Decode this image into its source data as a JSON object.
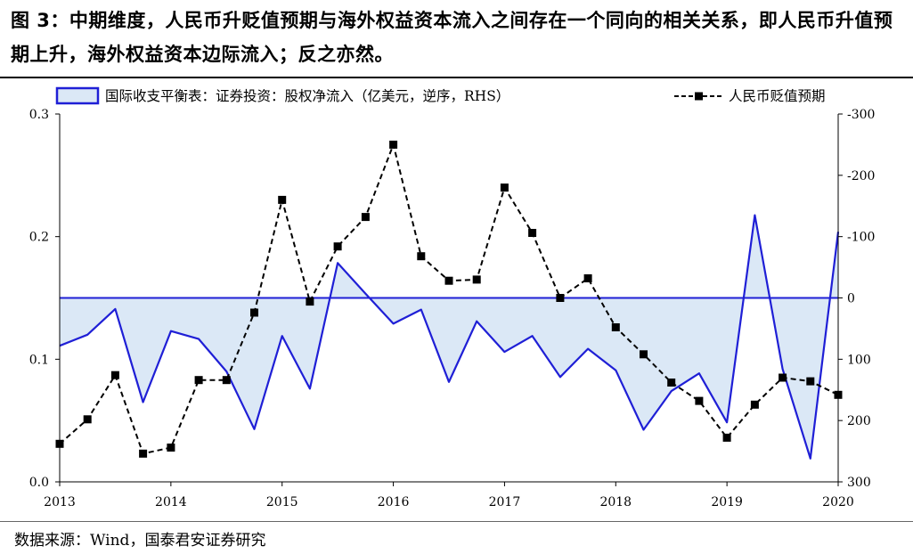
{
  "title": "图 3：中期维度，人民币升贬值预期与海外权益资本流入之间存在一个同向的相关关系，即人民币升值预期上升，海外权益资本边际流入；反之亦然。",
  "source": "数据来源：Wind，国泰君安证券研究",
  "colors": {
    "area_fill": "#dbe8f6",
    "area_line": "#1f1fd6",
    "dashed_line": "#000000"
  },
  "chart_data": {
    "type": "line",
    "legend_position": "top",
    "x_ticks": [
      "2013",
      "2014",
      "2015",
      "2016",
      "2017",
      "2018",
      "2019",
      "2020"
    ],
    "x_range": [
      2013,
      2020
    ],
    "left_axis": {
      "ylim": [
        0,
        0.3
      ],
      "ticks": [
        "0.0",
        "0.1",
        "0.2",
        "0.3"
      ]
    },
    "right_axis": {
      "ylim": [
        300,
        -300
      ],
      "reversed": true,
      "ticks": [
        "-300",
        "-200",
        "-100",
        "0",
        "100",
        "200",
        "300"
      ]
    },
    "series": [
      {
        "name": "国际收支平衡表：证券投资：股权净流入（亿美元，逆序，RHS）",
        "kind": "area",
        "axis": "right",
        "baseline": 0,
        "x": [
          2013.0,
          2013.25,
          2013.5,
          2013.75,
          2014.0,
          2014.25,
          2014.5,
          2014.75,
          2015.0,
          2015.25,
          2015.5,
          2015.75,
          2016.0,
          2016.25,
          2016.5,
          2016.75,
          2017.0,
          2017.25,
          2017.5,
          2017.75,
          2018.0,
          2018.25,
          2018.5,
          2018.75,
          2019.0,
          2019.25,
          2019.5,
          2019.75,
          2020.0
        ],
        "values": [
          78,
          60,
          18,
          170,
          54,
          67,
          120,
          214,
          62,
          148,
          -57,
          -7,
          42,
          19,
          137,
          38,
          88,
          62,
          129,
          83,
          118,
          215,
          152,
          123,
          203,
          -135,
          116,
          262,
          -108
        ]
      },
      {
        "name": "人民币贬值预期",
        "kind": "line",
        "axis": "left",
        "dashed": true,
        "markers": true,
        "x": [
          2013.0,
          2013.25,
          2013.5,
          2013.75,
          2014.0,
          2014.25,
          2014.5,
          2014.75,
          2015.0,
          2015.25,
          2015.5,
          2015.75,
          2016.0,
          2016.25,
          2016.5,
          2016.75,
          2017.0,
          2017.25,
          2017.5,
          2017.75,
          2018.0,
          2018.25,
          2018.5,
          2018.75,
          2019.0,
          2019.25,
          2019.5,
          2019.75,
          2020.0
        ],
        "values": [
          0.031,
          0.051,
          0.087,
          0.023,
          0.028,
          0.083,
          0.083,
          0.138,
          0.23,
          0.147,
          0.192,
          0.216,
          0.275,
          0.184,
          0.164,
          0.165,
          0.24,
          0.203,
          0.15,
          0.166,
          0.126,
          0.104,
          0.081,
          0.066,
          0.036,
          0.063,
          0.085,
          0.082,
          0.071
        ]
      }
    ]
  }
}
